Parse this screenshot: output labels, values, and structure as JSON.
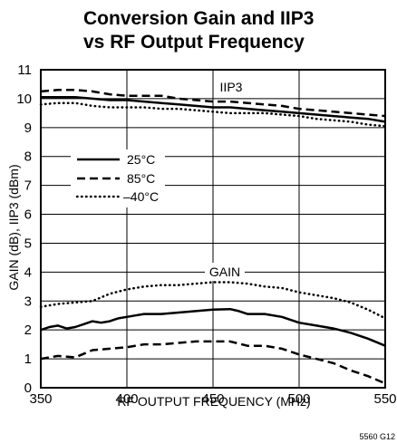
{
  "chart_data": {
    "type": "line",
    "title_lines": [
      "Conversion Gain and IIP3",
      "vs RF Output Frequency"
    ],
    "xlabel": "RF OUTPUT FREQUENCY (MHz)",
    "ylabel": "GAIN (dB), IIP3 (dBm)",
    "xlim": [
      350,
      550
    ],
    "ylim": [
      0,
      11
    ],
    "xticks": [
      "350",
      "400",
      "450",
      "500",
      "550"
    ],
    "yticks": [
      "0",
      "1",
      "2",
      "3",
      "4",
      "5",
      "6",
      "7",
      "8",
      "9",
      "10",
      "11"
    ],
    "grid": true,
    "legend": {
      "position": "middle-left",
      "entries": [
        {
          "label": "25°C",
          "style": "solid"
        },
        {
          "label": "85°C",
          "style": "dashed"
        },
        {
          "label": "–40°C",
          "style": "dotted"
        }
      ]
    },
    "annotations": [
      "IIP3",
      "GAIN"
    ],
    "figure_id": "5560 G12",
    "series": [
      {
        "group": "IIP3",
        "temp": "25°C",
        "style": "solid",
        "x": [
          350,
          360,
          370,
          380,
          390,
          400,
          410,
          420,
          430,
          440,
          450,
          460,
          470,
          480,
          490,
          500,
          510,
          520,
          530,
          540,
          550
        ],
        "y": [
          10.05,
          10.05,
          10.05,
          10.0,
          9.95,
          9.95,
          9.9,
          9.85,
          9.8,
          9.75,
          9.7,
          9.7,
          9.65,
          9.6,
          9.55,
          9.5,
          9.45,
          9.4,
          9.35,
          9.3,
          9.2
        ]
      },
      {
        "group": "IIP3",
        "temp": "85°C",
        "style": "dashed",
        "x": [
          350,
          360,
          370,
          380,
          390,
          400,
          410,
          420,
          430,
          440,
          450,
          460,
          470,
          480,
          490,
          500,
          510,
          520,
          530,
          540,
          550
        ],
        "y": [
          10.25,
          10.3,
          10.3,
          10.25,
          10.15,
          10.1,
          10.1,
          10.1,
          10.0,
          9.95,
          9.9,
          9.9,
          9.85,
          9.8,
          9.75,
          9.65,
          9.6,
          9.55,
          9.5,
          9.45,
          9.4
        ]
      },
      {
        "group": "IIP3",
        "temp": "–40°C",
        "style": "dotted",
        "x": [
          350,
          360,
          370,
          380,
          390,
          400,
          410,
          420,
          430,
          440,
          450,
          460,
          470,
          480,
          490,
          500,
          510,
          520,
          530,
          540,
          550
        ],
        "y": [
          9.8,
          9.85,
          9.85,
          9.75,
          9.7,
          9.7,
          9.7,
          9.65,
          9.65,
          9.6,
          9.55,
          9.5,
          9.5,
          9.5,
          9.45,
          9.4,
          9.3,
          9.25,
          9.2,
          9.1,
          9.05
        ]
      },
      {
        "group": "GAIN",
        "temp": "25°C",
        "style": "solid",
        "x": [
          350,
          355,
          360,
          365,
          370,
          375,
          380,
          385,
          390,
          395,
          400,
          405,
          410,
          420,
          430,
          440,
          450,
          460,
          465,
          470,
          480,
          490,
          500,
          510,
          520,
          530,
          540,
          550
        ],
        "y": [
          2.0,
          2.1,
          2.15,
          2.05,
          2.1,
          2.2,
          2.3,
          2.25,
          2.3,
          2.4,
          2.45,
          2.5,
          2.55,
          2.55,
          2.6,
          2.65,
          2.7,
          2.72,
          2.65,
          2.55,
          2.55,
          2.45,
          2.25,
          2.15,
          2.05,
          1.9,
          1.7,
          1.45
        ]
      },
      {
        "group": "GAIN",
        "temp": "85°C",
        "style": "dashed",
        "x": [
          350,
          360,
          370,
          380,
          390,
          400,
          410,
          420,
          430,
          440,
          450,
          460,
          470,
          480,
          490,
          500,
          510,
          520,
          530,
          540,
          550
        ],
        "y": [
          1.0,
          1.1,
          1.05,
          1.3,
          1.35,
          1.4,
          1.5,
          1.5,
          1.55,
          1.6,
          1.6,
          1.6,
          1.45,
          1.45,
          1.35,
          1.15,
          1.0,
          0.85,
          0.6,
          0.4,
          0.15
        ]
      },
      {
        "group": "GAIN",
        "temp": "–40°C",
        "style": "dotted",
        "x": [
          350,
          360,
          370,
          380,
          390,
          400,
          410,
          420,
          430,
          440,
          450,
          460,
          470,
          480,
          490,
          500,
          510,
          520,
          530,
          540,
          550
        ],
        "y": [
          2.8,
          2.9,
          2.95,
          3.0,
          3.25,
          3.4,
          3.5,
          3.55,
          3.55,
          3.6,
          3.65,
          3.65,
          3.6,
          3.5,
          3.45,
          3.3,
          3.2,
          3.1,
          2.95,
          2.7,
          2.4
        ]
      }
    ]
  }
}
